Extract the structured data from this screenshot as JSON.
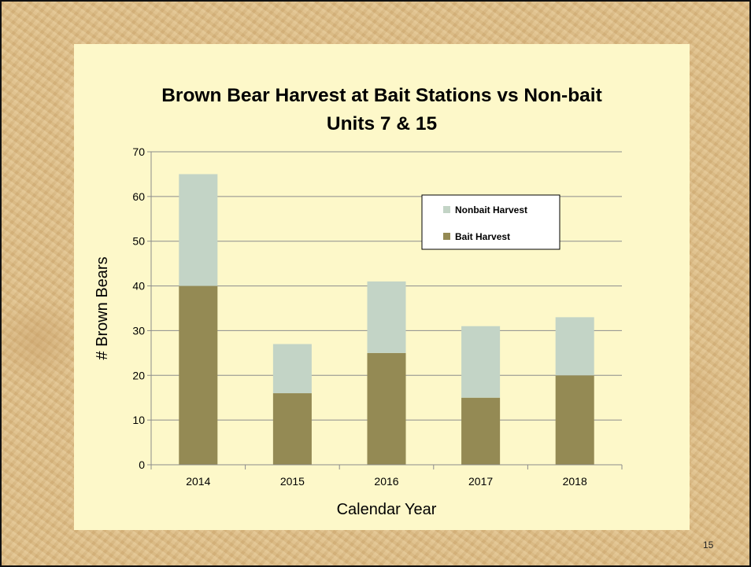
{
  "slide": {
    "number": "15"
  },
  "chart_data": {
    "type": "bar",
    "stacked": true,
    "title": "Brown Bear Harvest at Bait Stations vs Non-bait",
    "subtitle": "Units 7 & 15",
    "xlabel": "Calendar Year",
    "ylabel": "# Brown Bears",
    "categories": [
      "2014",
      "2015",
      "2016",
      "2017",
      "2018"
    ],
    "ylim": [
      0,
      70
    ],
    "yticks": [
      0,
      10,
      20,
      30,
      40,
      50,
      60,
      70
    ],
    "grid": true,
    "legend_position": "top-right",
    "series": [
      {
        "name": "Bait Harvest",
        "values": [
          40,
          16,
          25,
          15,
          20
        ],
        "color": "#948a54"
      },
      {
        "name": "Nonbait Harvest",
        "values": [
          25,
          11,
          16,
          16,
          13
        ],
        "color": "#c3d4c6"
      }
    ],
    "legend_order": [
      "Nonbait Harvest",
      "Bait Harvest"
    ]
  }
}
